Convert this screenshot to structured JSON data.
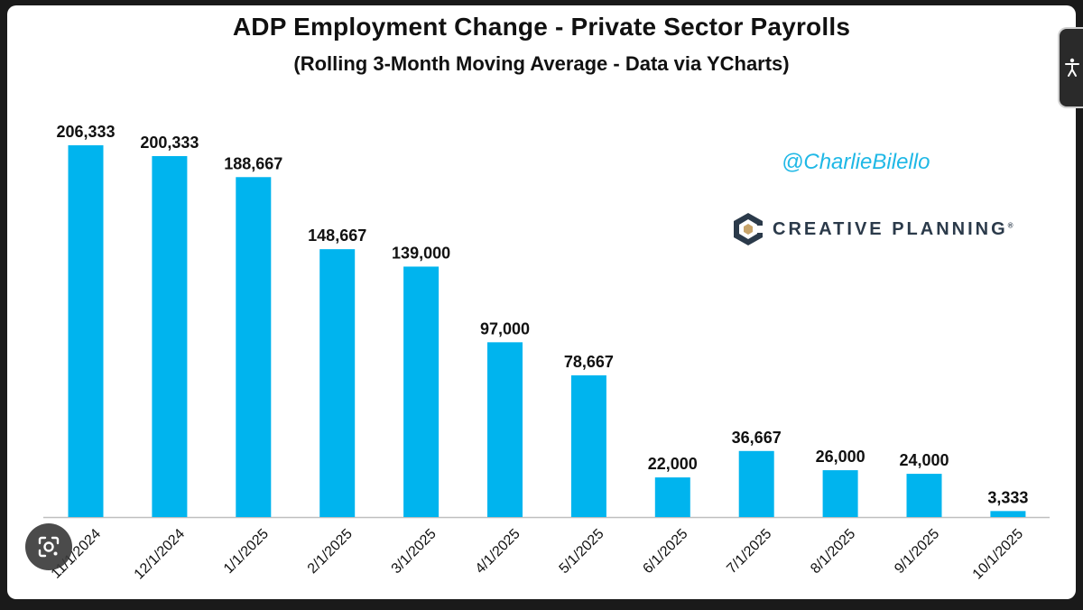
{
  "title": "ADP Employment Change - Private Sector Payrolls",
  "subtitle": "(Rolling 3-Month Moving Average - Data via YCharts)",
  "watermark": "@CharlieBilello",
  "logo_text": "CREATIVE PLANNING",
  "logo_tm": "®",
  "colors": {
    "bar": "#00b4ee",
    "axis": "#bfbfbf",
    "text": "#111111",
    "watermark": "#1fb8e6"
  },
  "icons": {
    "lens": "google-lens-icon",
    "accessibility": "accessibility-icon"
  },
  "chart_data": {
    "type": "bar",
    "title": "ADP Employment Change - Private Sector Payrolls",
    "subtitle": "(Rolling 3-Month Moving Average - Data via YCharts)",
    "xlabel": "",
    "ylabel": "",
    "ylim": [
      0,
      206333
    ],
    "grid": false,
    "categories": [
      "11/1/2024",
      "12/1/2024",
      "1/1/2025",
      "2/1/2025",
      "3/1/2025",
      "4/1/2025",
      "5/1/2025",
      "6/1/2025",
      "7/1/2025",
      "8/1/2025",
      "9/1/2025",
      "10/1/2025"
    ],
    "values": [
      206333,
      200333,
      188667,
      148667,
      139000,
      97000,
      78667,
      22000,
      36667,
      26000,
      24000,
      3333
    ],
    "data_labels": [
      "206,333",
      "200,333",
      "188,667",
      "148,667",
      "139,000",
      "97,000",
      "78,667",
      "22,000",
      "36,667",
      "26,000",
      "24,000",
      "3,333"
    ]
  }
}
